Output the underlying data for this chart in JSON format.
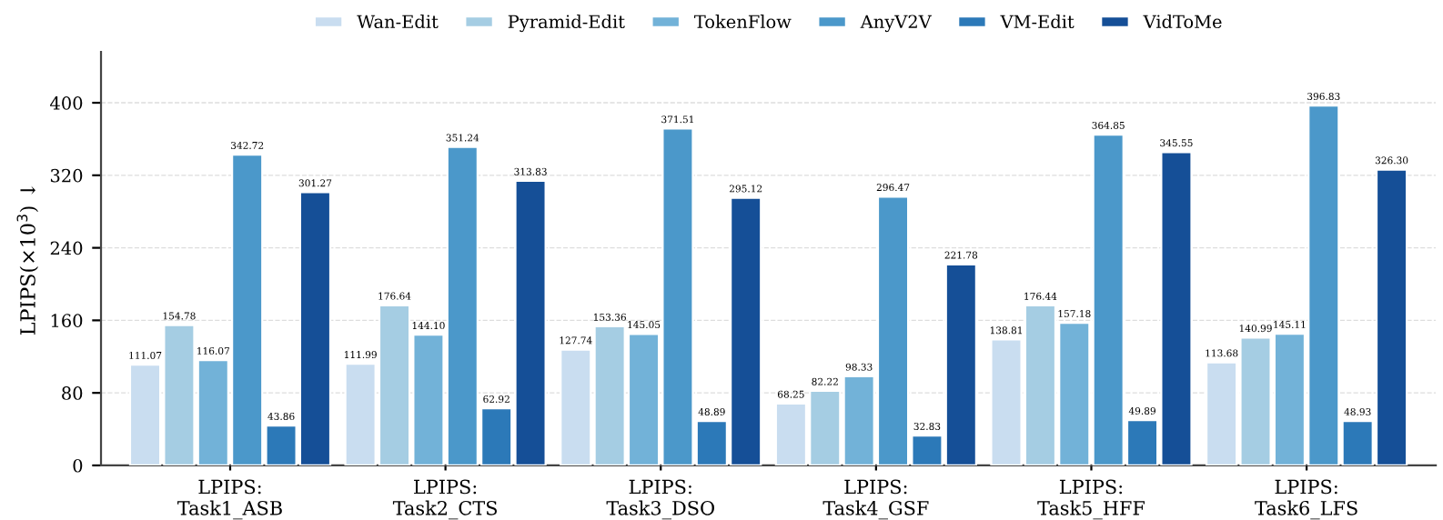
{
  "chart_data": {
    "type": "bar",
    "ylabel": "LPIPS(×10$^{3}$) ↓",
    "categories": [
      "LPIPS:\nTask1_ASB",
      "LPIPS:\nTask2_CTS",
      "LPIPS:\nTask3_DSO",
      "LPIPS:\nTask4_GSF",
      "LPIPS:\nTask5_HFF",
      "LPIPS:\nTask6_LFS"
    ],
    "series": [
      {
        "name": "Wan-Edit",
        "color": "#c9ddf0",
        "values": [
          111.07,
          111.99,
          127.74,
          68.25,
          138.81,
          113.68
        ],
        "value_labels": [
          "111.07",
          "111.99",
          "127.74",
          "68.25",
          "138.81",
          "113.68"
        ]
      },
      {
        "name": "Pyramid-Edit",
        "color": "#a5cde3",
        "values": [
          154.78,
          176.64,
          153.36,
          82.22,
          176.44,
          140.99
        ],
        "value_labels": [
          "154.78",
          "176.64",
          "153.36",
          "82.22",
          "176.44",
          "140.99"
        ]
      },
      {
        "name": "TokenFlow",
        "color": "#72b2d8",
        "values": [
          116.07,
          144.1,
          145.05,
          98.33,
          157.18,
          145.11
        ],
        "value_labels": [
          "116.07",
          "144.10",
          "145.05",
          "98.33",
          "157.18",
          "145.11"
        ]
      },
      {
        "name": "AnyV2V",
        "color": "#4b98ca",
        "values": [
          342.72,
          351.24,
          371.51,
          296.47,
          364.85,
          396.83
        ],
        "value_labels": [
          "342.72",
          "351.24",
          "371.51",
          "296.47",
          "364.85",
          "396.83"
        ]
      },
      {
        "name": "VM-Edit",
        "color": "#2c79b8",
        "values": [
          43.86,
          62.92,
          48.89,
          32.83,
          49.89,
          48.93
        ],
        "value_labels": [
          "43.86",
          "62.92",
          "48.89",
          "32.83",
          "49.89",
          "48.93"
        ]
      },
      {
        "name": "VidToMe",
        "color": "#154f97",
        "values": [
          301.27,
          313.83,
          295.12,
          221.78,
          345.55,
          326.3
        ],
        "value_labels": [
          "301.27",
          "313.83",
          "295.12",
          "221.78",
          "345.55",
          "326.30"
        ]
      }
    ],
    "ylim": [
      0,
      456
    ],
    "yticks": [
      0,
      80,
      160,
      240,
      320,
      400
    ],
    "grid": "y",
    "legend": "top"
  }
}
